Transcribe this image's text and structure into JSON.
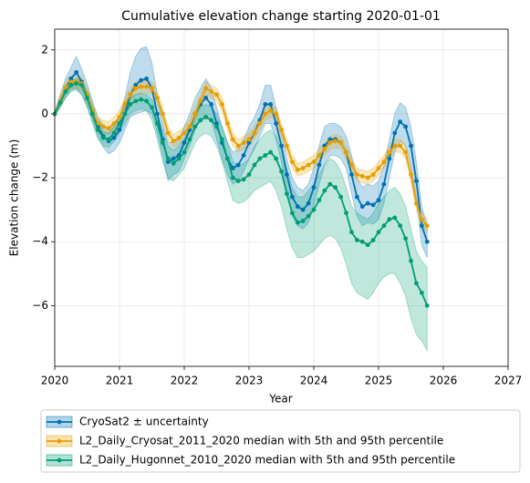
{
  "chart_data": {
    "type": "line",
    "title": "Cumulative elevation change starting 2020-01-01",
    "xlabel": "Year",
    "ylabel": "Elevation change (m)",
    "xlim": [
      2020,
      2027
    ],
    "ylim": [
      -7.9,
      2.65
    ],
    "xticks": [
      2020,
      2021,
      2022,
      2023,
      2024,
      2025,
      2026,
      2027
    ],
    "yticks": [
      {
        "value": -6,
        "label": "−6"
      },
      {
        "value": -4,
        "label": "−4"
      },
      {
        "value": -2,
        "label": "−2"
      },
      0,
      2
    ],
    "grid": true,
    "legend": "below",
    "x": [
      2020.0,
      2020.083,
      2020.167,
      2020.25,
      2020.333,
      2020.417,
      2020.5,
      2020.583,
      2020.667,
      2020.75,
      2020.833,
      2020.917,
      2021.0,
      2021.083,
      2021.167,
      2021.25,
      2021.333,
      2021.417,
      2021.5,
      2021.583,
      2021.667,
      2021.75,
      2021.833,
      2021.917,
      2022.0,
      2022.083,
      2022.167,
      2022.25,
      2022.333,
      2022.417,
      2022.5,
      2022.583,
      2022.667,
      2022.75,
      2022.833,
      2022.917,
      2023.0,
      2023.083,
      2023.167,
      2023.25,
      2023.333,
      2023.417,
      2023.5,
      2023.583,
      2023.667,
      2023.75,
      2023.833,
      2023.917,
      2024.0,
      2024.083,
      2024.167,
      2024.25,
      2024.333,
      2024.417,
      2024.5,
      2024.583,
      2024.667,
      2024.75,
      2024.833,
      2024.917,
      2025.0,
      2025.083,
      2025.167,
      2025.25,
      2025.333,
      2025.417,
      2025.5,
      2025.583,
      2025.667,
      2025.75
    ],
    "series": [
      {
        "name": "CryoSat2 ± uncertainty",
        "color": "#0072B2",
        "values": [
          0,
          0.4,
          0.8,
          1.1,
          1.3,
          1.0,
          0.6,
          0.1,
          -0.4,
          -0.7,
          -0.85,
          -0.75,
          -0.5,
          0.0,
          0.6,
          0.9,
          1.05,
          1.1,
          0.8,
          0.0,
          -0.8,
          -1.5,
          -1.4,
          -1.3,
          -0.9,
          -0.5,
          0.0,
          0.3,
          0.5,
          0.3,
          -0.3,
          -0.9,
          -1.4,
          -1.7,
          -1.6,
          -1.3,
          -0.9,
          -0.6,
          -0.2,
          0.3,
          0.3,
          -0.3,
          -1.0,
          -1.9,
          -2.6,
          -2.9,
          -3.0,
          -2.8,
          -2.3,
          -1.6,
          -1.0,
          -0.8,
          -0.8,
          -0.9,
          -1.2,
          -1.9,
          -2.6,
          -2.9,
          -2.8,
          -2.85,
          -2.7,
          -2.2,
          -1.4,
          -0.6,
          -0.25,
          -0.4,
          -1.0,
          -2.1,
          -3.5,
          -4.0
        ],
        "error": [
          0.05,
          0.2,
          0.3,
          0.35,
          0.5,
          0.4,
          0.35,
          0.3,
          0.3,
          0.35,
          0.4,
          0.4,
          0.4,
          0.5,
          0.7,
          0.9,
          1.0,
          1.0,
          0.8,
          0.6,
          0.5,
          0.6,
          0.5,
          0.5,
          0.5,
          0.5,
          0.5,
          0.5,
          0.6,
          0.5,
          0.5,
          0.5,
          0.5,
          0.5,
          0.5,
          0.5,
          0.5,
          0.5,
          0.5,
          0.6,
          0.6,
          0.5,
          0.5,
          0.5,
          0.6,
          0.6,
          0.6,
          0.6,
          0.6,
          0.6,
          0.6,
          0.5,
          0.5,
          0.5,
          0.5,
          0.6,
          0.6,
          0.6,
          0.6,
          0.6,
          0.6,
          0.6,
          0.6,
          0.6,
          0.6,
          0.6,
          0.6,
          0.6,
          0.6,
          0.5
        ]
      },
      {
        "name": "L2_Daily_Cryosat_2011_2020 median with 5th and 95th percentile",
        "color": "#E69F00",
        "values": [
          0,
          0.4,
          0.8,
          1.0,
          1.0,
          0.95,
          0.6,
          0.1,
          -0.3,
          -0.4,
          -0.45,
          -0.3,
          -0.1,
          0.3,
          0.6,
          0.8,
          0.85,
          0.85,
          0.8,
          0.5,
          0.0,
          -0.6,
          -0.85,
          -0.75,
          -0.6,
          -0.4,
          0.0,
          0.4,
          0.8,
          0.7,
          0.6,
          0.3,
          -0.3,
          -0.8,
          -1.0,
          -0.9,
          -0.8,
          -0.6,
          -0.3,
          0.0,
          0.1,
          0.0,
          -0.5,
          -1.0,
          -1.5,
          -1.75,
          -1.7,
          -1.6,
          -1.5,
          -1.3,
          -1.1,
          -0.9,
          -0.85,
          -0.9,
          -1.2,
          -1.6,
          -1.9,
          -1.95,
          -2.0,
          -1.9,
          -1.7,
          -1.5,
          -1.2,
          -1.0,
          -1.0,
          -1.2,
          -1.9,
          -2.8,
          -3.3,
          -3.5
        ],
        "lower": [
          -0.05,
          0.25,
          0.6,
          0.8,
          0.8,
          0.75,
          0.4,
          -0.1,
          -0.5,
          -0.6,
          -0.65,
          -0.5,
          -0.3,
          0.1,
          0.4,
          0.6,
          0.65,
          0.65,
          0.6,
          0.3,
          -0.2,
          -0.8,
          -1.05,
          -0.95,
          -0.8,
          -0.6,
          -0.2,
          0.2,
          0.6,
          0.5,
          0.4,
          0.1,
          -0.5,
          -1.0,
          -1.2,
          -1.1,
          -1.0,
          -0.8,
          -0.5,
          -0.2,
          -0.1,
          -0.2,
          -0.7,
          -1.2,
          -1.7,
          -1.95,
          -1.9,
          -1.8,
          -1.7,
          -1.5,
          -1.3,
          -1.1,
          -1.05,
          -1.1,
          -1.4,
          -1.8,
          -2.1,
          -2.15,
          -2.2,
          -2.1,
          -1.9,
          -1.7,
          -1.4,
          -1.2,
          -1.2,
          -1.4,
          -2.1,
          -3.0,
          -3.5,
          -3.7
        ],
        "upper": [
          0.05,
          0.55,
          1.0,
          1.2,
          1.2,
          1.15,
          0.8,
          0.3,
          -0.1,
          -0.2,
          -0.25,
          -0.1,
          0.1,
          0.5,
          0.8,
          1.0,
          1.05,
          1.05,
          1.0,
          0.7,
          0.2,
          -0.4,
          -0.65,
          -0.55,
          -0.4,
          -0.2,
          0.2,
          0.6,
          1.0,
          0.9,
          0.8,
          0.5,
          -0.1,
          -0.6,
          -0.8,
          -0.7,
          -0.6,
          -0.4,
          -0.1,
          0.2,
          0.3,
          0.2,
          -0.3,
          -0.8,
          -1.3,
          -1.55,
          -1.5,
          -1.4,
          -1.3,
          -1.1,
          -0.9,
          -0.7,
          -0.65,
          -0.7,
          -1.0,
          -1.4,
          -1.7,
          -1.75,
          -1.8,
          -1.7,
          -1.5,
          -1.3,
          -1.0,
          -0.8,
          -0.8,
          -1.0,
          -1.7,
          -2.6,
          -3.1,
          -3.3
        ]
      },
      {
        "name": "L2_Daily_Hugonnet_2010_2020 median with 5th and 95th percentile",
        "color": "#009E73",
        "values": [
          0,
          0.35,
          0.7,
          0.9,
          0.95,
          0.9,
          0.5,
          0.0,
          -0.5,
          -0.75,
          -0.8,
          -0.6,
          -0.3,
          0.0,
          0.3,
          0.4,
          0.45,
          0.4,
          0.2,
          -0.3,
          -0.9,
          -1.4,
          -1.55,
          -1.4,
          -1.2,
          -0.8,
          -0.4,
          -0.2,
          -0.1,
          -0.2,
          -0.4,
          -0.8,
          -1.4,
          -2.0,
          -2.1,
          -2.05,
          -1.9,
          -1.6,
          -1.4,
          -1.3,
          -1.2,
          -1.4,
          -1.8,
          -2.5,
          -3.1,
          -3.4,
          -3.35,
          -3.2,
          -3.0,
          -2.7,
          -2.4,
          -2.2,
          -2.3,
          -2.6,
          -3.1,
          -3.7,
          -3.95,
          -4.0,
          -4.1,
          -3.95,
          -3.7,
          -3.5,
          -3.3,
          -3.25,
          -3.5,
          -3.9,
          -4.6,
          -5.3,
          -5.6,
          -6.0
        ],
        "lower": [
          -0.05,
          0.2,
          0.5,
          0.7,
          0.75,
          0.6,
          0.2,
          -0.3,
          -0.8,
          -1.0,
          -1.05,
          -0.85,
          -0.6,
          -0.3,
          0.0,
          0.1,
          0.15,
          0.1,
          -0.2,
          -0.8,
          -1.5,
          -2.0,
          -2.1,
          -1.9,
          -1.7,
          -1.3,
          -0.9,
          -0.7,
          -0.6,
          -0.7,
          -1.0,
          -1.5,
          -2.1,
          -2.7,
          -2.8,
          -2.75,
          -2.6,
          -2.4,
          -2.3,
          -2.2,
          -2.1,
          -2.4,
          -2.9,
          -3.6,
          -4.2,
          -4.5,
          -4.5,
          -4.4,
          -4.3,
          -4.1,
          -3.9,
          -3.8,
          -3.9,
          -4.2,
          -4.7,
          -5.3,
          -5.6,
          -5.7,
          -5.8,
          -5.6,
          -5.3,
          -5.1,
          -5.0,
          -5.0,
          -5.3,
          -5.7,
          -6.4,
          -6.9,
          -7.1,
          -7.4
        ],
        "upper": [
          0.05,
          0.45,
          0.85,
          1.05,
          1.1,
          1.05,
          0.7,
          0.2,
          -0.3,
          -0.55,
          -0.6,
          -0.4,
          -0.1,
          0.2,
          0.5,
          0.6,
          0.65,
          0.6,
          0.45,
          0.0,
          -0.5,
          -1.0,
          -1.15,
          -1.0,
          -0.8,
          -0.4,
          0.0,
          0.2,
          0.3,
          0.2,
          0.0,
          -0.4,
          -0.9,
          -1.5,
          -1.6,
          -1.55,
          -1.4,
          -1.0,
          -0.8,
          -0.6,
          -0.5,
          -0.7,
          -1.1,
          -1.7,
          -2.3,
          -2.6,
          -2.6,
          -2.4,
          -2.2,
          -1.9,
          -1.6,
          -1.4,
          -1.5,
          -1.8,
          -2.3,
          -2.9,
          -3.1,
          -3.2,
          -3.3,
          -3.1,
          -2.8,
          -2.6,
          -2.4,
          -2.3,
          -2.5,
          -2.9,
          -3.6,
          -4.3,
          -4.6,
          -4.8
        ]
      }
    ]
  }
}
